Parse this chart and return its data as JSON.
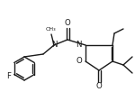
{
  "bg_color": "#ffffff",
  "line_color": "#1a1a1a",
  "lw": 1.0,
  "fs": 5.8,
  "figsize": [
    1.5,
    1.02
  ],
  "dpi": 100,
  "xlim": [
    0,
    150
  ],
  "ylim": [
    0,
    102
  ]
}
